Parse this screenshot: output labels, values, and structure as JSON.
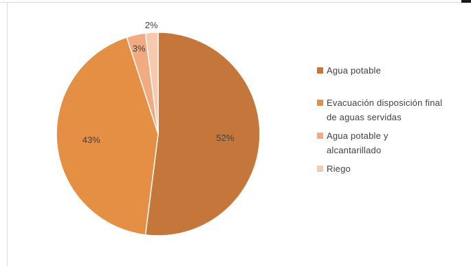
{
  "chart_data": {
    "type": "pie",
    "categories": [
      "Agua potable",
      "Evacuación disposición final de aguas servidas",
      "Agua potable y alcantarillado",
      "Riego"
    ],
    "values": [
      52,
      43,
      3,
      2
    ],
    "data_labels": [
      "52%",
      "43%",
      "3%",
      "2%"
    ],
    "colors": [
      "#c5773b",
      "#e58f45",
      "#f2aa80",
      "#f7c9ad"
    ],
    "legend_position": "right"
  },
  "legend": {
    "items": [
      {
        "label_line1": "Agua potable",
        "label_line2": ""
      },
      {
        "label_line1": "Evacuación disposición final",
        "label_line2": "de aguas servidas"
      },
      {
        "label_line1": "Agua potable y",
        "label_line2": "alcantarillado"
      },
      {
        "label_line1": "Riego",
        "label_line2": ""
      }
    ]
  }
}
